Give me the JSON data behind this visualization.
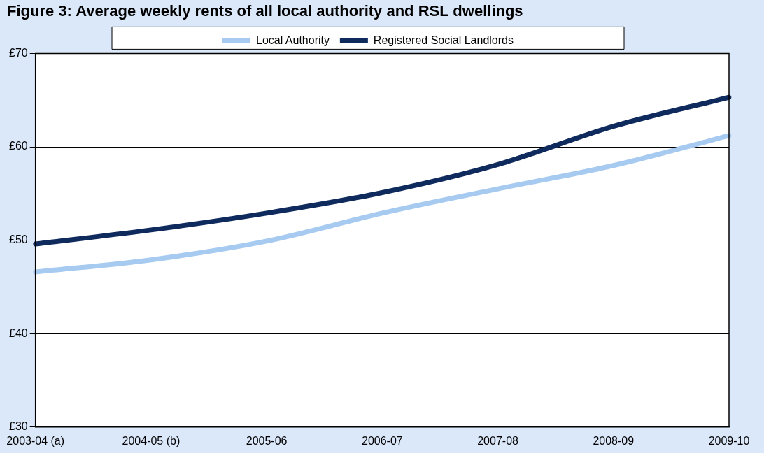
{
  "chart_data": {
    "type": "line",
    "title": "Figure 3: Average weekly rents of all local authority and RSL dwellings",
    "categories": [
      "2003-04 (a)",
      "2004-05 (b)",
      "2005-06",
      "2006-07",
      "2007-08",
      "2008-09",
      "2009-10"
    ],
    "series": [
      {
        "name": "Local Authority",
        "color": "#a6caf0",
        "values": [
          46.6,
          47.9,
          49.9,
          52.9,
          55.5,
          58.0,
          61.2
        ]
      },
      {
        "name": "Registered Social Landlords",
        "color": "#0f2a5c",
        "values": [
          49.6,
          51.1,
          52.9,
          55.1,
          58.1,
          62.2,
          65.3
        ]
      }
    ],
    "ylim": [
      30,
      70
    ],
    "yticks": [
      {
        "value": 30,
        "label": "£30"
      },
      {
        "value": 40,
        "label": "£40"
      },
      {
        "value": 50,
        "label": "£50"
      },
      {
        "value": 60,
        "label": "£60"
      },
      {
        "value": 70,
        "label": "£70"
      }
    ],
    "grid": "y",
    "legend": "top",
    "marker": "none",
    "line_style": "solid"
  }
}
